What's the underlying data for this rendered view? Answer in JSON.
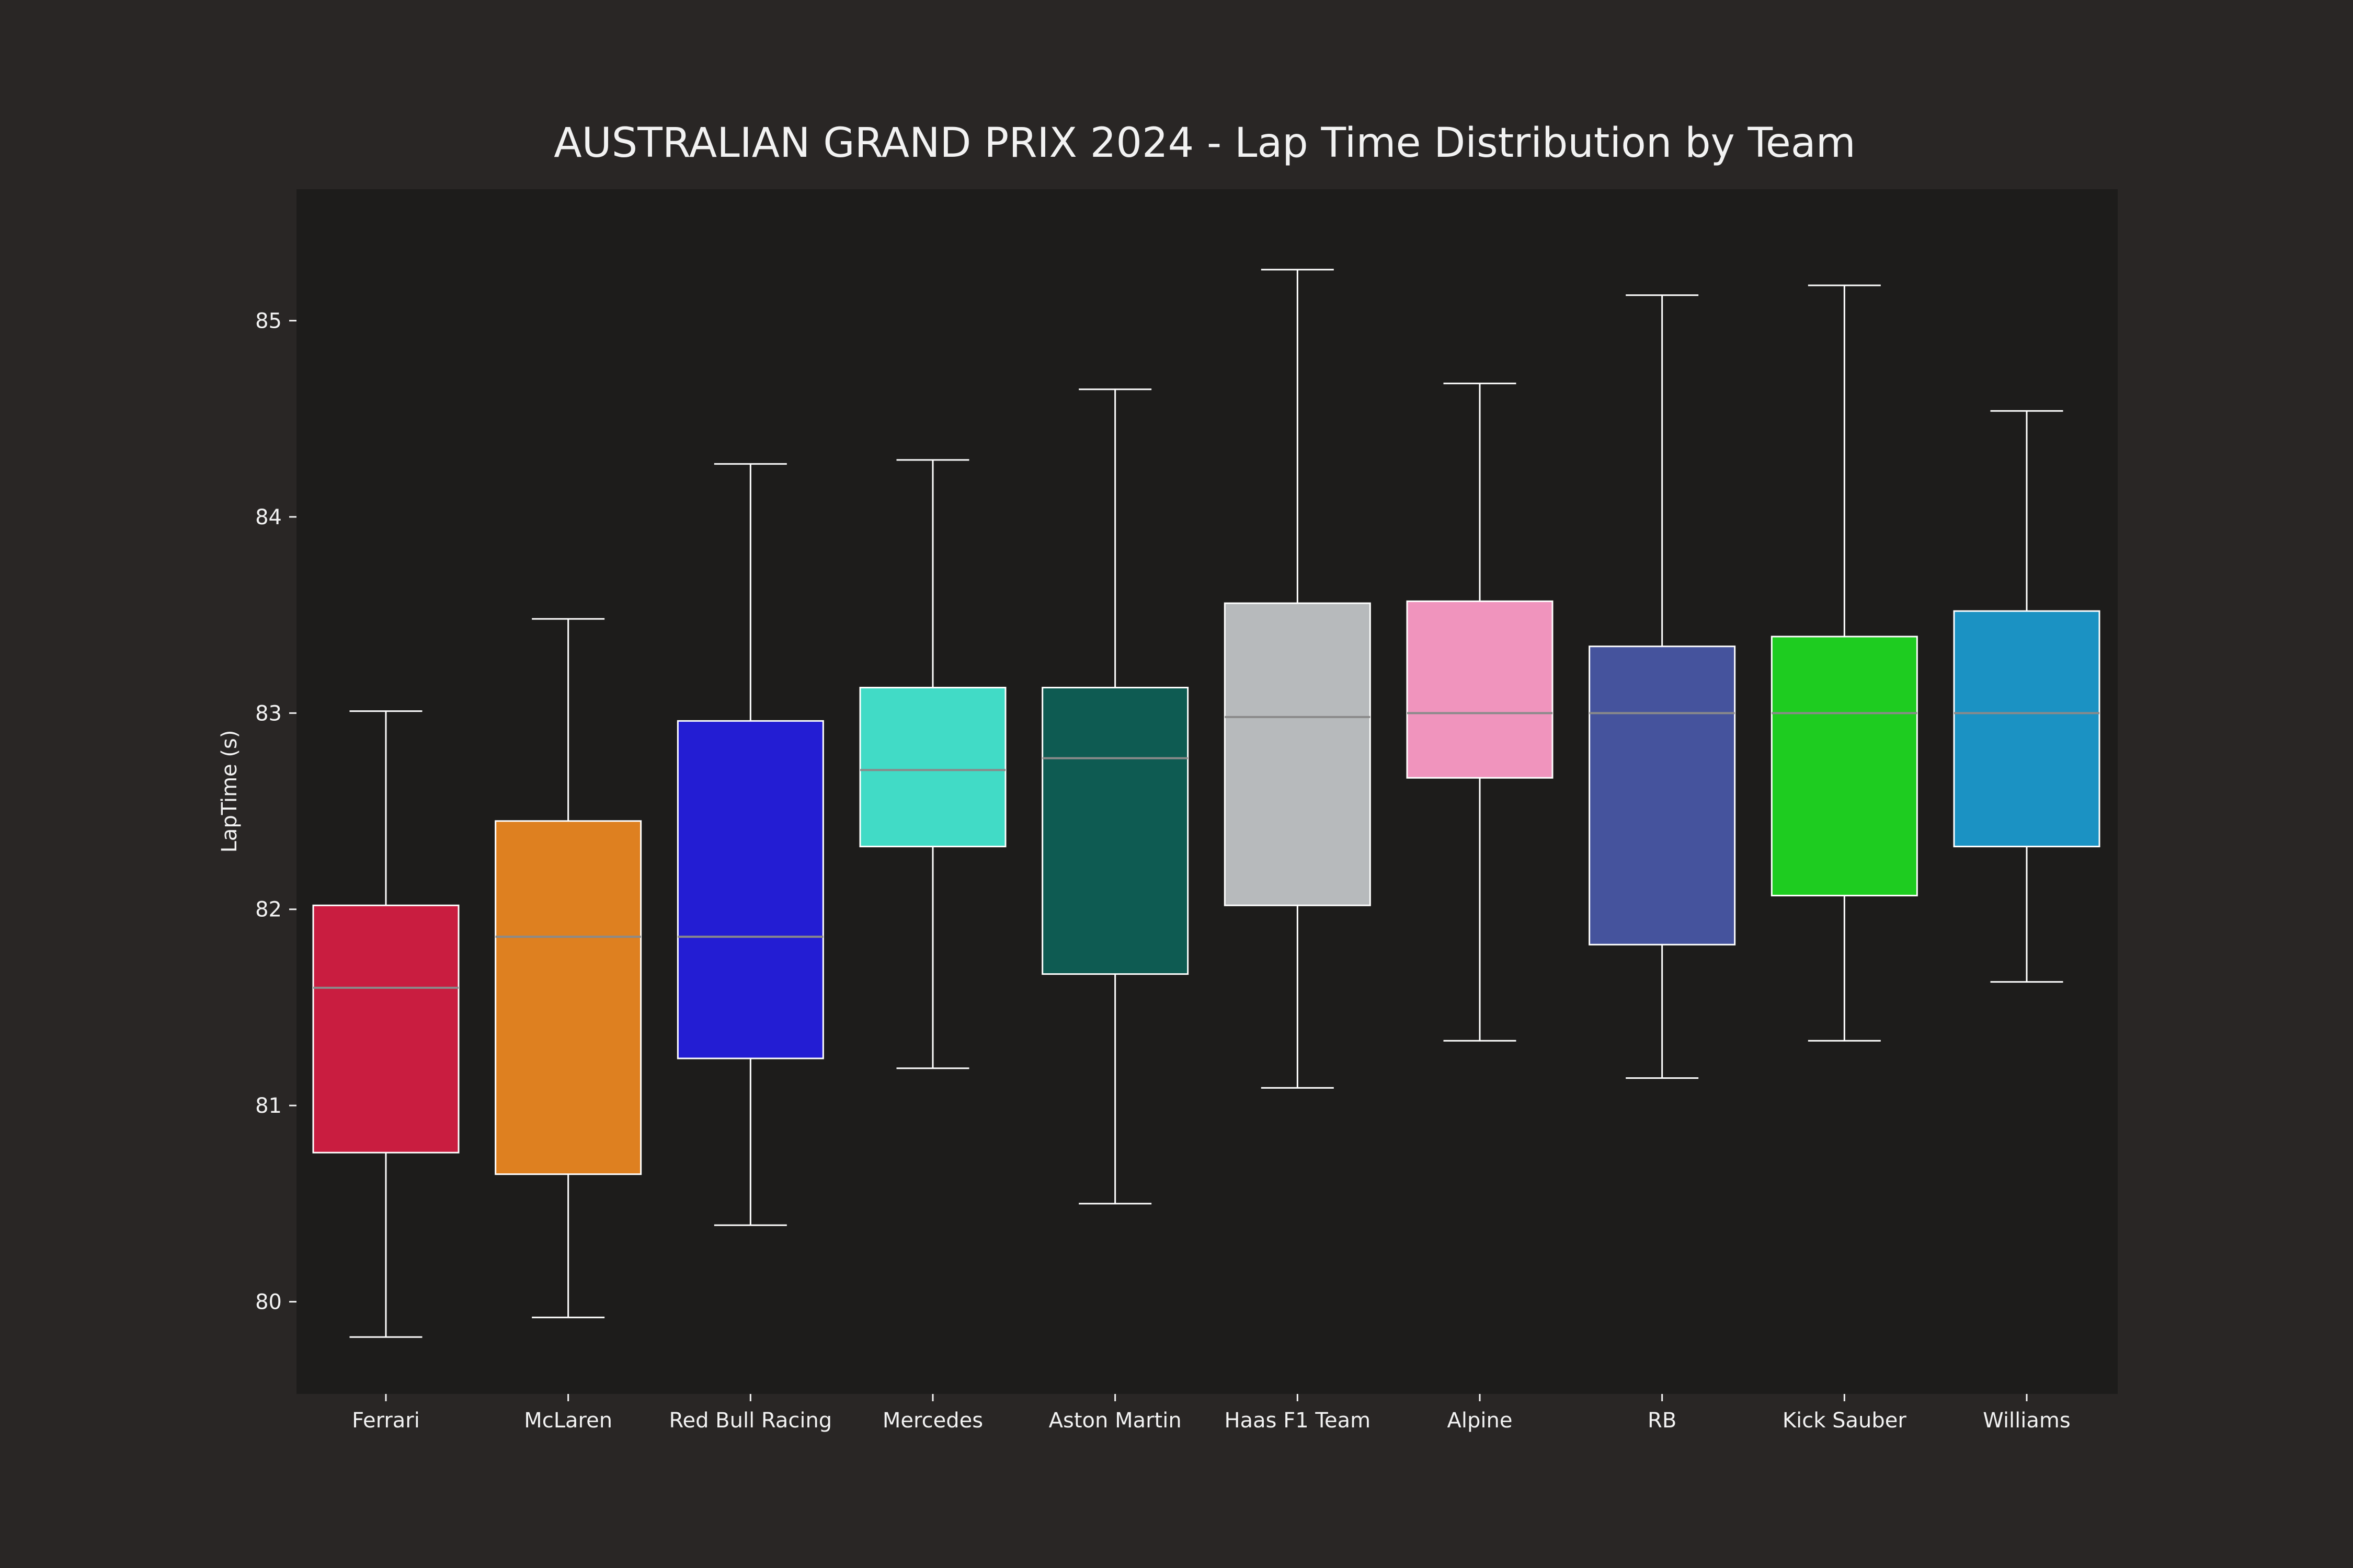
{
  "chart_data": {
    "type": "box",
    "title": "AUSTRALIAN GRAND PRIX 2024 - Lap Time Distribution by Team",
    "xlabel": "",
    "ylabel": "LapTime (s)",
    "ylim": [
      79.53,
      85.67
    ],
    "yticks": [
      80,
      81,
      82,
      83,
      84,
      85
    ],
    "grid": false,
    "legend": "none",
    "categories": [
      "Ferrari",
      "McLaren",
      "Red Bull Racing",
      "Mercedes",
      "Aston Martin",
      "Haas F1 Team",
      "Alpine",
      "RB",
      "Kick Sauber",
      "Williams"
    ],
    "colors": [
      "#c91d40",
      "#de8020",
      "#231dd3",
      "#41dbc6",
      "#0e5b52",
      "#b7babc",
      "#f094bd",
      "#45539d",
      "#1ecc20",
      "#1b92c3"
    ],
    "boxes": [
      {
        "category": "Ferrari",
        "whisker_low": 79.82,
        "q1": 80.76,
        "median": 81.6,
        "q3": 82.02,
        "whisker_high": 83.01
      },
      {
        "category": "McLaren",
        "whisker_low": 79.92,
        "q1": 80.65,
        "median": 81.86,
        "q3": 82.45,
        "whisker_high": 83.48
      },
      {
        "category": "Red Bull Racing",
        "whisker_low": 80.39,
        "q1": 81.24,
        "median": 81.86,
        "q3": 82.96,
        "whisker_high": 84.27
      },
      {
        "category": "Mercedes",
        "whisker_low": 81.19,
        "q1": 82.32,
        "median": 82.71,
        "q3": 83.13,
        "whisker_high": 84.29
      },
      {
        "category": "Aston Martin",
        "whisker_low": 80.5,
        "q1": 81.67,
        "median": 82.77,
        "q3": 83.13,
        "whisker_high": 84.65
      },
      {
        "category": "Haas F1 Team",
        "whisker_low": 81.09,
        "q1": 82.02,
        "median": 82.98,
        "q3": 83.56,
        "whisker_high": 85.26
      },
      {
        "category": "Alpine",
        "whisker_low": 81.33,
        "q1": 82.67,
        "median": 83.0,
        "q3": 83.57,
        "whisker_high": 84.68
      },
      {
        "category": "RB",
        "whisker_low": 81.14,
        "q1": 81.82,
        "median": 83.0,
        "q3": 83.34,
        "whisker_high": 85.13
      },
      {
        "category": "Kick Sauber",
        "whisker_low": 81.33,
        "q1": 82.07,
        "median": 83.0,
        "q3": 83.39,
        "whisker_high": 85.18
      },
      {
        "category": "Williams",
        "whisker_low": 81.63,
        "q1": 82.32,
        "median": 83.0,
        "q3": 83.52,
        "whisker_high": 84.54
      }
    ]
  }
}
